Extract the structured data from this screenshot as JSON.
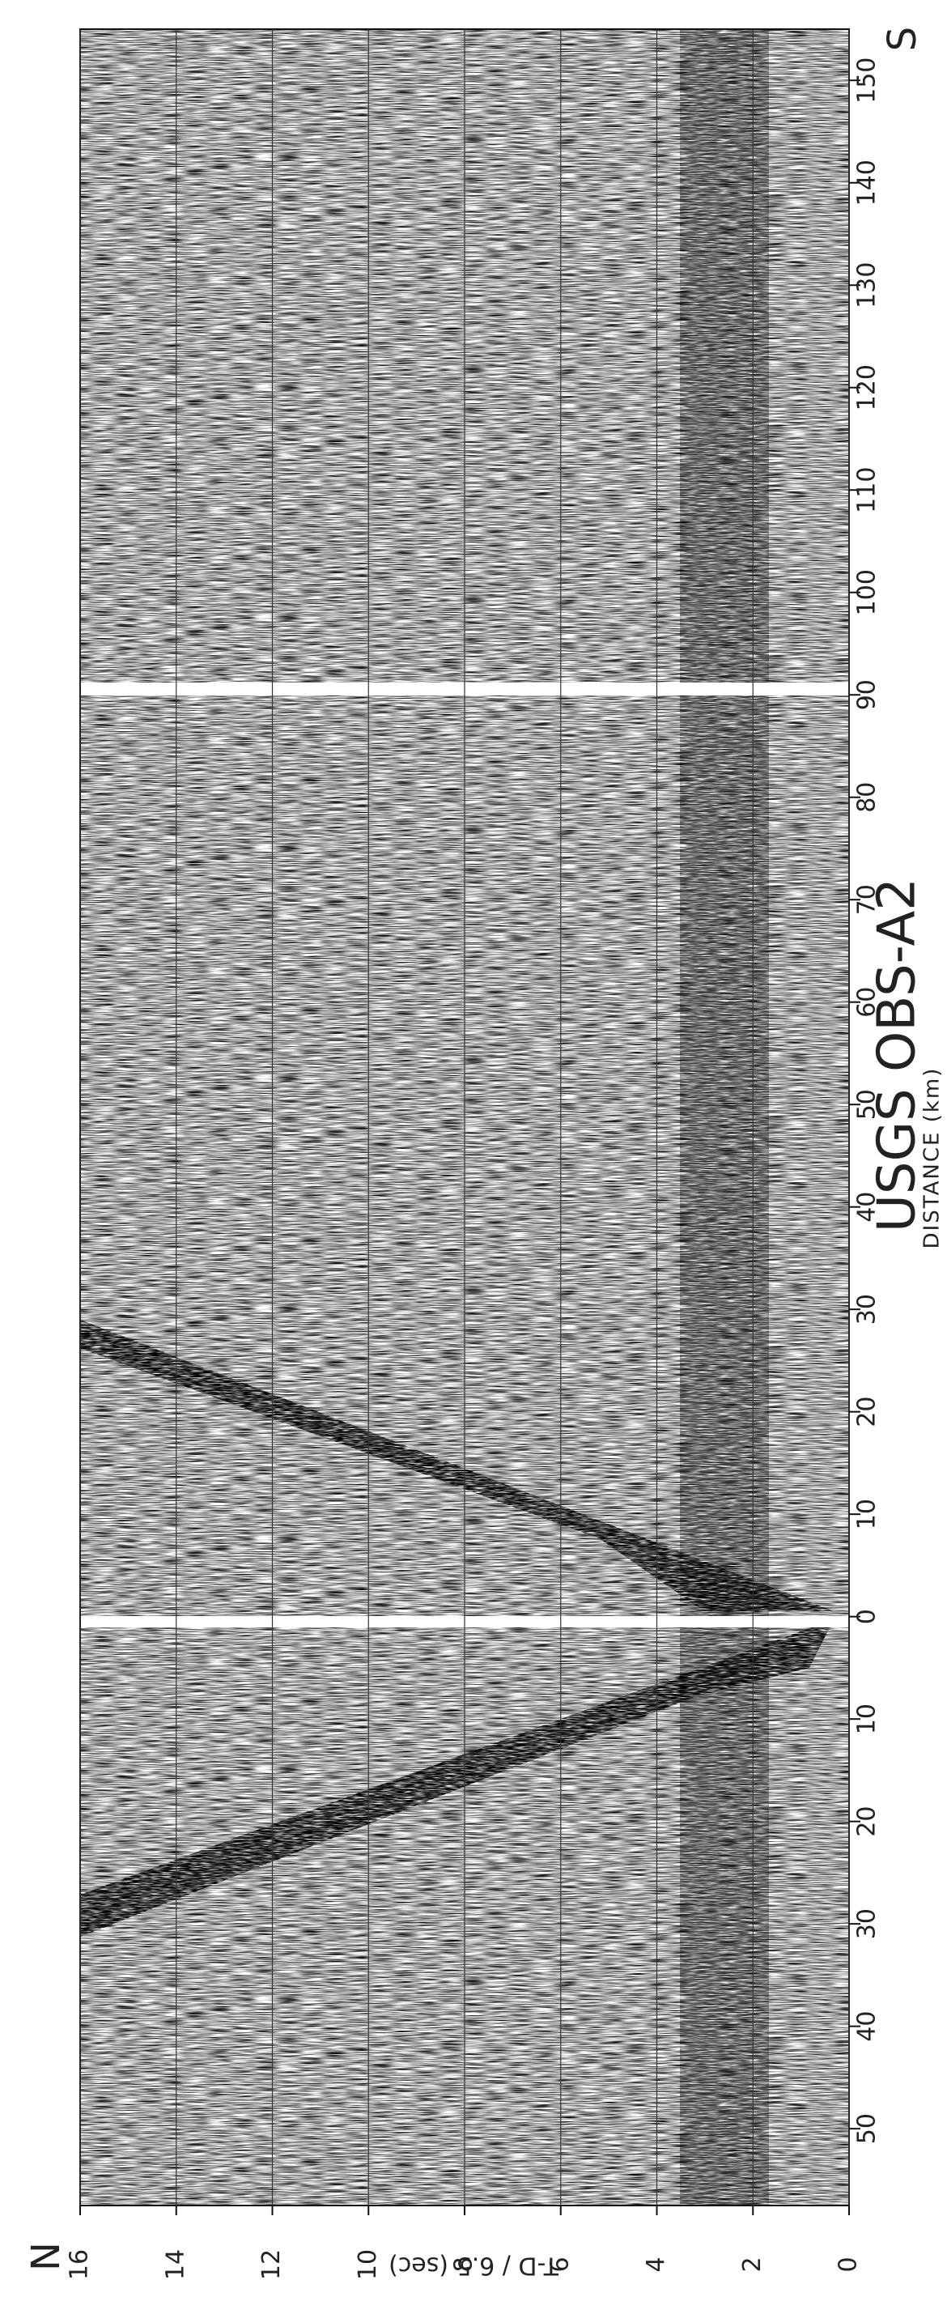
{
  "chart_data": {
    "type": "seismic",
    "title": "USGS OBS-A2",
    "xlabel": "DISTANCE (km)",
    "ylabel": "T-D / 6.5 (sec)",
    "annotations": [
      "N",
      "S"
    ],
    "xlim": [
      -57.5,
      155
    ],
    "xticks": [
      {
        "value": -50,
        "label": "50"
      },
      {
        "value": -40,
        "label": "40"
      },
      {
        "value": -30,
        "label": "30"
      },
      {
        "value": -20,
        "label": "20"
      },
      {
        "value": -10,
        "label": "10"
      },
      0,
      10,
      20,
      30,
      40,
      50,
      60,
      70,
      80,
      90,
      100,
      110,
      120,
      130,
      140,
      150
    ],
    "ylim": [
      0,
      16
    ],
    "yticks": [
      0,
      2,
      4,
      6,
      8,
      10,
      12,
      14,
      16
    ],
    "grid": true
  }
}
